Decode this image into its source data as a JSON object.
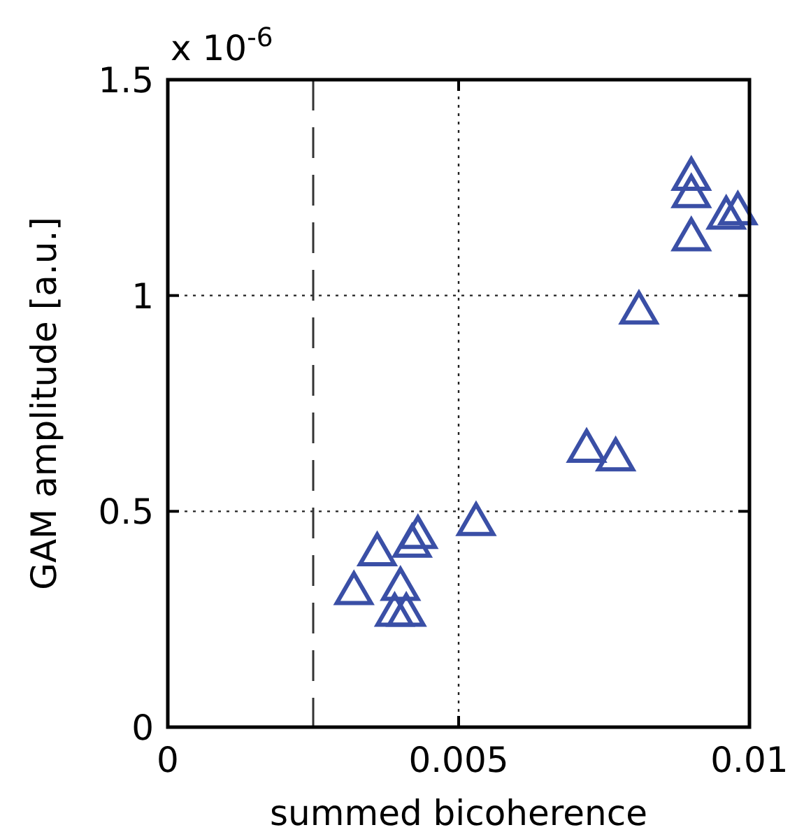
{
  "chart_data": {
    "type": "scatter",
    "xlabel": "summed bicoherence",
    "ylabel": "GAM amplitude [a.u.]",
    "annotations": [
      "x 10$^{-6}$"
    ],
    "x": [
      0.0032,
      0.0036,
      0.004,
      0.0039,
      0.0041,
      0.0042,
      0.0043,
      0.0053,
      0.0072,
      0.0077,
      0.0081,
      0.009,
      0.009,
      0.009,
      0.0096,
      0.0098
    ],
    "series": [
      {
        "color": "#3a4fa6",
        "values": [
          0.32,
          0.41,
          0.33,
          0.27,
          0.27,
          0.43,
          0.45,
          0.48,
          0.65,
          0.63,
          0.97,
          1.14,
          1.24,
          1.28,
          1.19,
          1.2
        ]
      }
    ],
    "xlim": [
      0,
      0.01
    ],
    "ylim": [
      0,
      1.5
    ],
    "xticks": [
      0,
      0.005,
      0.01
    ],
    "yticks": [
      0,
      0.5,
      1,
      1.5
    ],
    "grid": true,
    "marker": "triangle",
    "ref_lines": [
      {
        "axis": "x",
        "value": 0.0025,
        "line_style": "dashed",
        "color": "#333333"
      }
    ]
  }
}
